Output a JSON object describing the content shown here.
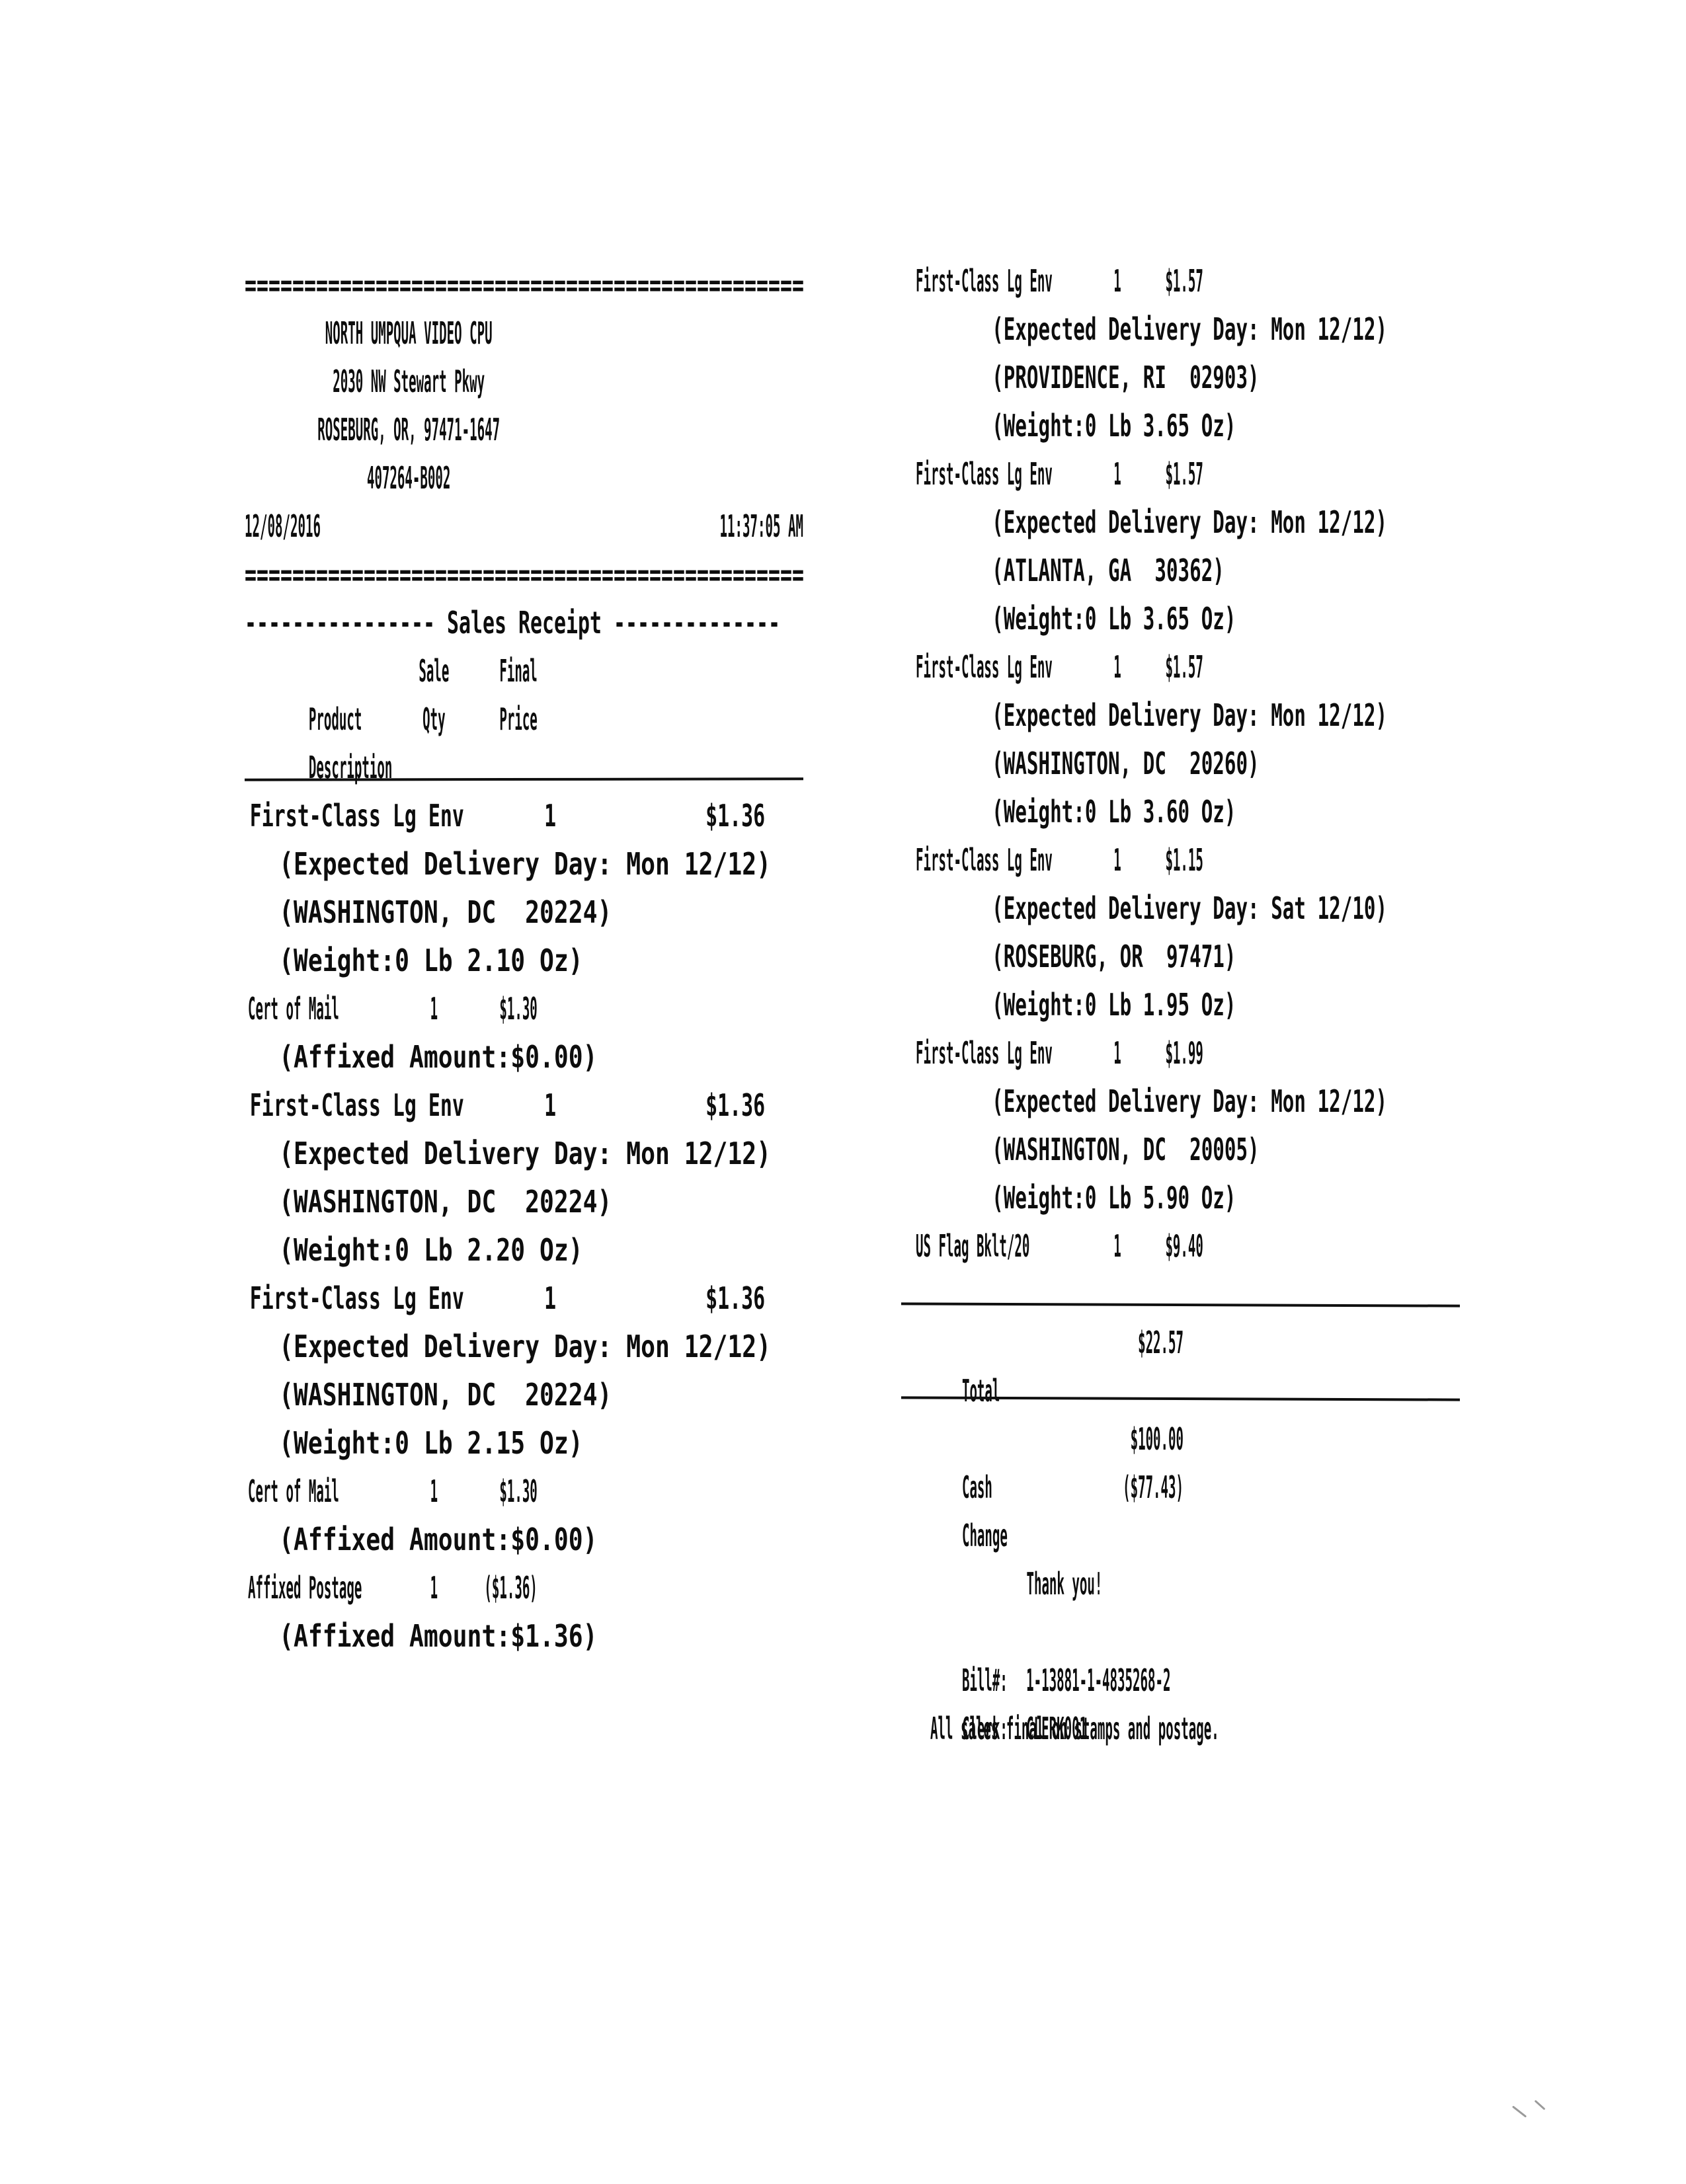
{
  "receipt": {
    "header": {
      "separator": "===============================================",
      "store_name": "NORTH UMPQUA VIDEO CPU",
      "address": "2030 NW Stewart Pkwy",
      "city_line": "ROSEBURG, OR, 97471-1647",
      "terminal_id": "407264-B002",
      "date": "12/08/2016",
      "time": "11:37:05 AM",
      "section_title": "---------------- Sales Receipt --------------",
      "columns": {
        "product_l1": "Product",
        "product_l2": "Description",
        "qty_l1": "Sale",
        "qty_l2": "Qty",
        "price_l1": "Final",
        "price_l2": "Price"
      }
    },
    "items_left": [
      {
        "name": "First-Class Lg Env",
        "qty": "1",
        "price": "$1.36",
        "pitch": "wide",
        "details": [
          "(Expected Delivery Day: Mon 12/12)",
          "(WASHINGTON, DC  20224)",
          "(Weight:0 Lb 2.10 Oz)"
        ]
      },
      {
        "name": "Cert of Mail",
        "qty": "1",
        "price": "$1.30",
        "pitch": "narrow",
        "details": [
          "(Affixed Amount:$0.00)"
        ]
      },
      {
        "name": "First-Class Lg Env",
        "qty": "1",
        "price": "$1.36",
        "pitch": "wide",
        "details": [
          "(Expected Delivery Day: Mon 12/12)",
          "(WASHINGTON, DC  20224)",
          "(Weight:0 Lb 2.20 Oz)"
        ]
      },
      {
        "name": "First-Class Lg Env",
        "qty": "1",
        "price": "$1.36",
        "pitch": "wide",
        "details": [
          "(Expected Delivery Day: Mon 12/12)",
          "(WASHINGTON, DC  20224)",
          "(Weight:0 Lb 2.15 Oz)"
        ]
      },
      {
        "name": "Cert of Mail",
        "qty": "1",
        "price": "$1.30",
        "pitch": "narrow",
        "details": [
          "(Affixed Amount:$0.00)"
        ]
      },
      {
        "name": "Affixed Postage",
        "qty": "1",
        "price": "($1.36)",
        "pitch": "narrow",
        "details": [
          "(Affixed Amount:$1.36)"
        ]
      }
    ],
    "items_right": [
      {
        "name": "First-Class Lg Env",
        "qty": "1",
        "price": "$1.57",
        "details": [
          "(Expected Delivery Day: Mon 12/12)",
          "(PROVIDENCE, RI  02903)",
          "(Weight:0 Lb 3.65 Oz)"
        ]
      },
      {
        "name": "First-Class Lg Env",
        "qty": "1",
        "price": "$1.57",
        "details": [
          "(Expected Delivery Day: Mon 12/12)",
          "(ATLANTA, GA  30362)",
          "(Weight:0 Lb 3.65 Oz)"
        ]
      },
      {
        "name": "First-Class Lg Env",
        "qty": "1",
        "price": "$1.57",
        "details": [
          "(Expected Delivery Day: Mon 12/12)",
          "(WASHINGTON, DC  20260)",
          "(Weight:0 Lb 3.60 Oz)"
        ]
      },
      {
        "name": "First-Class Lg Env",
        "qty": "1",
        "price": "$1.15",
        "details": [
          "(Expected Delivery Day: Sat 12/10)",
          "(ROSEBURG, OR  97471)",
          "(Weight:0 Lb 1.95 Oz)"
        ]
      },
      {
        "name": "First-Class Lg Env",
        "qty": "1",
        "price": "$1.99",
        "details": [
          "(Expected Delivery Day: Mon 12/12)",
          "(WASHINGTON, DC  20005)",
          "(Weight:0 Lb 5.90 Oz)"
        ]
      },
      {
        "name": "US Flag Bklt/20",
        "qty": "1",
        "price": "$9.40",
        "details": []
      }
    ],
    "totals": {
      "total_label": "Total",
      "total": "$22.57",
      "cash_label": "Cash",
      "cash": "$100.00",
      "change_label": "Change",
      "change": "($77.43)"
    },
    "footer": {
      "thanks": "Thank you!",
      "bill_label": "Bill#:",
      "bill_number": "1-13881-1-4835268-2",
      "clerk_label": "Clerk:",
      "clerk_id": "CLERK001",
      "notice": "All sales final on stamps and postage."
    }
  }
}
